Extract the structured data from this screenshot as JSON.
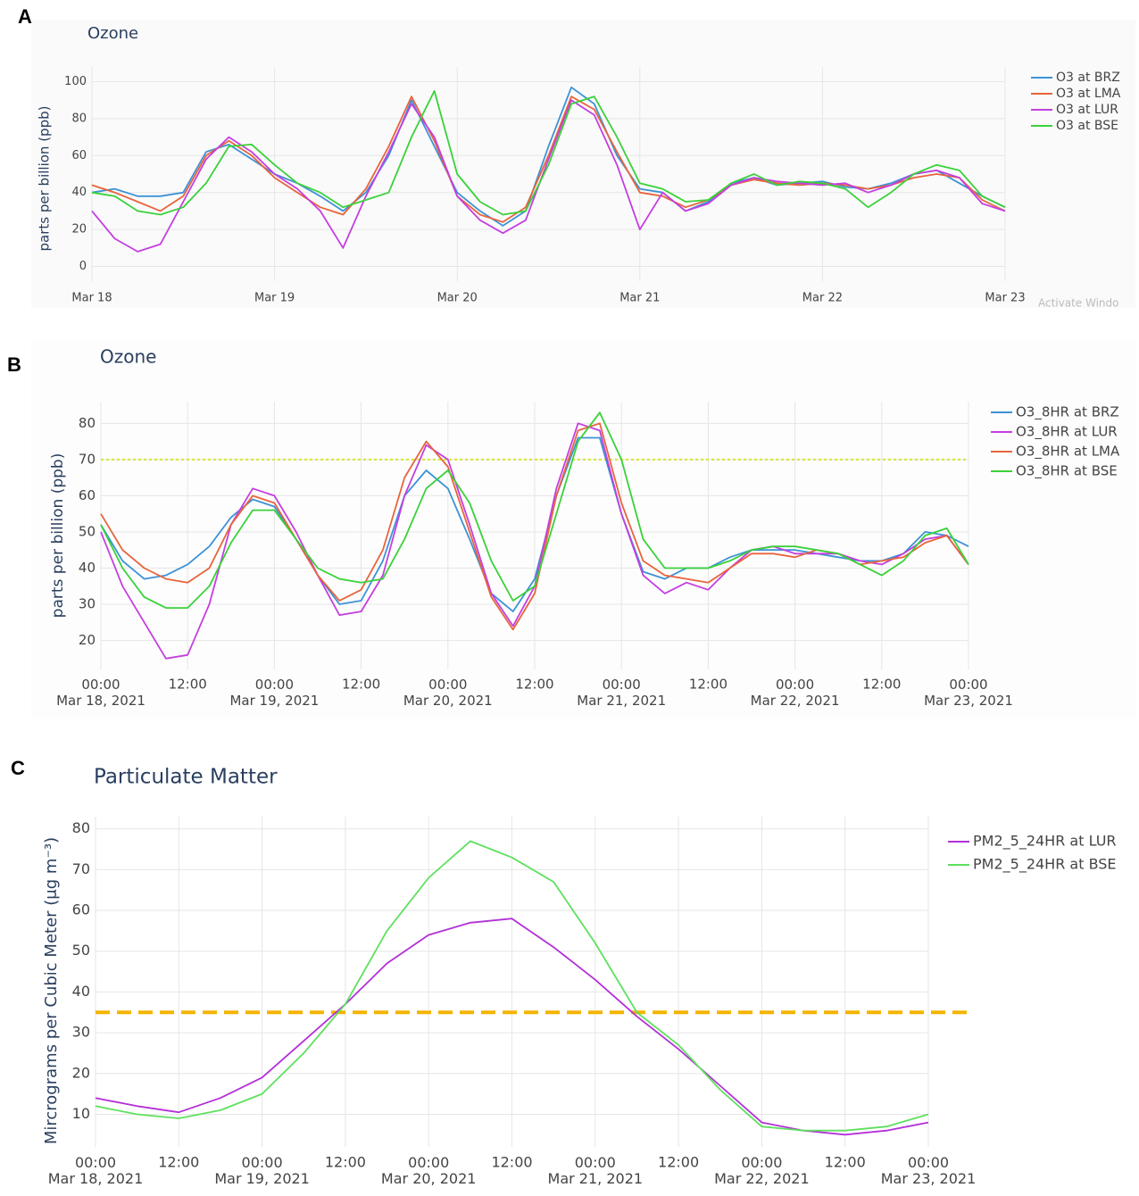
{
  "chart_data": [
    {
      "type": "line",
      "panel_label": "A",
      "title": "Ozone",
      "y_label": "parts per billion (ppb)",
      "watermark": "Activate Windo",
      "grid": true,
      "legend": "top-right",
      "x": [
        0,
        3,
        6,
        9,
        12,
        15,
        18,
        21,
        24,
        27,
        30,
        33,
        36,
        39,
        42,
        45,
        48,
        51,
        54,
        57,
        60,
        63,
        66,
        69,
        72,
        75,
        78,
        81,
        84,
        87,
        90,
        93,
        96,
        99,
        102,
        105,
        108,
        111,
        114,
        117,
        120
      ],
      "xlim": [
        0,
        120
      ],
      "ylim": [
        -8,
        108
      ],
      "xticks": [
        {
          "value": 0,
          "label": "Mar 18"
        },
        {
          "value": 24,
          "label": "Mar 19"
        },
        {
          "value": 48,
          "label": "Mar 20"
        },
        {
          "value": 72,
          "label": "Mar 21"
        },
        {
          "value": 96,
          "label": "Mar 22"
        },
        {
          "value": 120,
          "label": "Mar 23"
        }
      ],
      "yticks": [
        0,
        20,
        40,
        60,
        80,
        100
      ],
      "series": [
        {
          "name": "O3 at BRZ",
          "color": "#3d92d6",
          "values": [
            40,
            42,
            38,
            38,
            40,
            62,
            66,
            58,
            50,
            45,
            38,
            30,
            40,
            60,
            90,
            65,
            40,
            30,
            22,
            30,
            65,
            97,
            88,
            60,
            42,
            40,
            30,
            35,
            45,
            48,
            44,
            45,
            46,
            43,
            42,
            45,
            50,
            52,
            45,
            38,
            32
          ]
        },
        {
          "name": "O3 at LMA",
          "color": "#e8643c",
          "values": [
            44,
            40,
            35,
            30,
            38,
            60,
            68,
            60,
            48,
            40,
            32,
            28,
            42,
            65,
            92,
            68,
            38,
            28,
            24,
            32,
            60,
            92,
            85,
            62,
            40,
            38,
            32,
            36,
            44,
            47,
            45,
            44,
            45,
            44,
            42,
            44,
            48,
            50,
            48,
            36,
            30
          ]
        },
        {
          "name": "O3 at LUR",
          "color": "#c43fe0",
          "values": [
            30,
            15,
            8,
            12,
            35,
            58,
            70,
            62,
            50,
            42,
            30,
            10,
            38,
            62,
            88,
            70,
            38,
            25,
            18,
            25,
            58,
            90,
            82,
            55,
            20,
            40,
            30,
            34,
            44,
            48,
            46,
            45,
            44,
            45,
            40,
            44,
            50,
            52,
            48,
            34,
            30
          ]
        },
        {
          "name": "O3 at BSE",
          "color": "#3ad13a",
          "values": [
            40,
            38,
            30,
            28,
            32,
            45,
            65,
            66,
            55,
            45,
            40,
            32,
            36,
            40,
            70,
            95,
            50,
            35,
            28,
            30,
            55,
            88,
            92,
            70,
            45,
            42,
            35,
            36,
            45,
            50,
            44,
            46,
            45,
            42,
            32,
            40,
            50,
            55,
            52,
            38,
            32
          ]
        }
      ]
    },
    {
      "type": "line",
      "panel_label": "B",
      "title": "Ozone",
      "y_label": "parts per billion (ppb)",
      "grid": true,
      "legend": "top-right",
      "x": [
        0,
        3,
        6,
        9,
        12,
        15,
        18,
        21,
        24,
        27,
        30,
        33,
        36,
        39,
        42,
        45,
        48,
        51,
        54,
        57,
        60,
        63,
        66,
        69,
        72,
        75,
        78,
        81,
        84,
        87,
        90,
        93,
        96,
        99,
        102,
        105,
        108,
        111,
        114,
        117,
        120
      ],
      "xlim": [
        0,
        120
      ],
      "ylim": [
        12,
        86
      ],
      "xticks": [
        {
          "value": 0,
          "label": "00:00\nMar 18, 2021"
        },
        {
          "value": 12,
          "label": "12:00"
        },
        {
          "value": 24,
          "label": "00:00\nMar 19, 2021"
        },
        {
          "value": 36,
          "label": "12:00"
        },
        {
          "value": 48,
          "label": "00:00\nMar 20, 2021"
        },
        {
          "value": 60,
          "label": "12:00"
        },
        {
          "value": 72,
          "label": "00:00\nMar 21, 2021"
        },
        {
          "value": 84,
          "label": "12:00"
        },
        {
          "value": 96,
          "label": "00:00\nMar 22, 2021"
        },
        {
          "value": 108,
          "label": "12:00"
        },
        {
          "value": 120,
          "label": "00:00\nMar 23, 2021"
        }
      ],
      "yticks": [
        20,
        30,
        40,
        50,
        60,
        70,
        80
      ],
      "reference_lines": [
        {
          "value": 70,
          "color": "#d4e82a",
          "dash": "dot"
        }
      ],
      "series": [
        {
          "name": "O3_8HR at BRZ",
          "color": "#3d92d6",
          "values": [
            52,
            42,
            37,
            38,
            41,
            46,
            54,
            59,
            57,
            48,
            38,
            30,
            31,
            42,
            60,
            67,
            62,
            48,
            33,
            28,
            37,
            60,
            76,
            76,
            55,
            39,
            37,
            40,
            40,
            43,
            45,
            45,
            45,
            44,
            43,
            42,
            42,
            44,
            50,
            49,
            46
          ]
        },
        {
          "name": "O3_8HR at LUR",
          "color": "#c43fe0",
          "values": [
            50,
            35,
            25,
            15,
            16,
            30,
            52,
            62,
            60,
            50,
            38,
            27,
            28,
            38,
            60,
            74,
            70,
            52,
            33,
            24,
            35,
            62,
            80,
            78,
            55,
            38,
            33,
            36,
            34,
            40,
            45,
            46,
            44,
            44,
            44,
            42,
            41,
            44,
            48,
            49,
            41
          ]
        },
        {
          "name": "O3_8HR at LMA",
          "color": "#e8643c",
          "values": [
            55,
            45,
            40,
            37,
            36,
            40,
            52,
            60,
            58,
            48,
            38,
            31,
            34,
            45,
            65,
            75,
            68,
            50,
            32,
            23,
            33,
            60,
            78,
            80,
            58,
            42,
            38,
            37,
            36,
            40,
            44,
            44,
            43,
            45,
            44,
            41,
            42,
            43,
            47,
            49,
            41
          ]
        },
        {
          "name": "O3_8HR at BSE",
          "color": "#3ad13a",
          "values": [
            52,
            40,
            32,
            29,
            29,
            35,
            47,
            56,
            56,
            48,
            40,
            37,
            36,
            37,
            48,
            62,
            67,
            58,
            42,
            31,
            35,
            55,
            75,
            83,
            70,
            48,
            40,
            40,
            40,
            42,
            45,
            46,
            46,
            45,
            44,
            41,
            38,
            42,
            49,
            51,
            41
          ]
        }
      ]
    },
    {
      "type": "line",
      "panel_label": "C",
      "title": "Particulate Matter",
      "y_label": "Mircrograms per Cubic Meter (μg m⁻³)",
      "grid": true,
      "legend": "top-right",
      "x": [
        0,
        6,
        12,
        18,
        24,
        30,
        36,
        42,
        48,
        54,
        60,
        66,
        72,
        78,
        84,
        90,
        96,
        102,
        108,
        114,
        120
      ],
      "xlim": [
        0,
        120
      ],
      "ylim": [
        2,
        83
      ],
      "xticks": [
        {
          "value": 0,
          "label": "00:00\nMar 18, 2021"
        },
        {
          "value": 12,
          "label": "12:00"
        },
        {
          "value": 24,
          "label": "00:00\nMar 19, 2021"
        },
        {
          "value": 36,
          "label": "12:00"
        },
        {
          "value": 48,
          "label": "00:00\nMar 20, 2021"
        },
        {
          "value": 60,
          "label": "12:00"
        },
        {
          "value": 72,
          "label": "00:00\nMar 21, 2021"
        },
        {
          "value": 84,
          "label": "12:00"
        },
        {
          "value": 96,
          "label": "00:00\nMar 22, 2021"
        },
        {
          "value": 108,
          "label": "12:00"
        },
        {
          "value": 120,
          "label": "00:00\nMar 23, 2021"
        }
      ],
      "yticks": [
        10,
        20,
        30,
        40,
        50,
        60,
        70,
        80
      ],
      "reference_lines": [
        {
          "value": 35,
          "color": "#f5b400",
          "dash": "dash"
        }
      ],
      "series": [
        {
          "name": "PM2_5_24HR at LUR",
          "color": "#b330d8",
          "values": [
            14,
            12,
            10.5,
            14,
            19,
            28,
            37,
            47,
            54,
            57,
            58,
            51,
            43,
            34,
            26,
            17,
            8,
            6,
            5,
            6,
            8
          ]
        },
        {
          "name": "PM2_5_24HR at BSE",
          "color": "#5ee05e",
          "values": [
            12,
            10,
            9,
            11,
            15,
            25,
            37,
            55,
            68,
            77,
            73,
            67,
            52,
            35,
            27,
            16,
            7,
            6,
            6,
            7,
            10
          ]
        }
      ]
    }
  ]
}
